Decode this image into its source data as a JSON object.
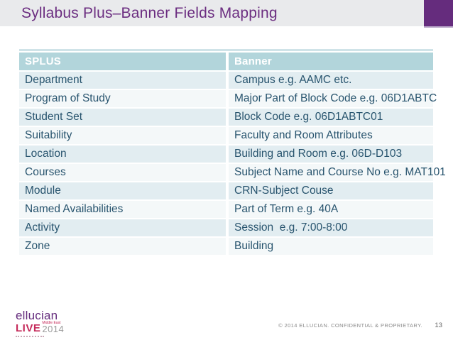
{
  "slide": {
    "title": "Syllabus Plus–Banner Fields Mapping",
    "footer_copyright": "© 2014 ELLUCIAN. CONFIDENTIAL & PROPRIETARY.",
    "page_number": "13"
  },
  "logo": {
    "brand": "ellucian",
    "event": "LIVE",
    "region": "Middle East",
    "year": "2014"
  },
  "table": {
    "headers": [
      "SPLUS",
      "Banner"
    ],
    "rows": [
      [
        "Department",
        "Campus e.g. AAMC etc."
      ],
      [
        "Program of Study",
        "Major Part of Block Code e.g. 06D1ABTC"
      ],
      [
        "Student Set",
        "Block Code e.g. 06D1ABTC01"
      ],
      [
        "Suitability",
        "Faculty and Room Attributes"
      ],
      [
        "Location",
        "Building and Room e.g. 06D-D103"
      ],
      [
        "Courses",
        "Subject Name and Course No e.g. MAT101"
      ],
      [
        "Module",
        "CRN-Subject Couse"
      ],
      [
        "Named Availabilities",
        "Part of Term e.g. 40A"
      ],
      [
        "Activity",
        "Session  e.g. 7:00-8:00"
      ],
      [
        "Zone",
        "Building"
      ]
    ]
  },
  "colors": {
    "accent-purple": "#652c7d",
    "title-color": "#6b2d80",
    "title-bar-bg": "#e9eaec",
    "header-bg": "#b2d5db",
    "row-odd": "#e2edf1",
    "row-even": "#f4f8f9",
    "cell-text": "#28546e",
    "live-magenta": "#c52a5a"
  }
}
